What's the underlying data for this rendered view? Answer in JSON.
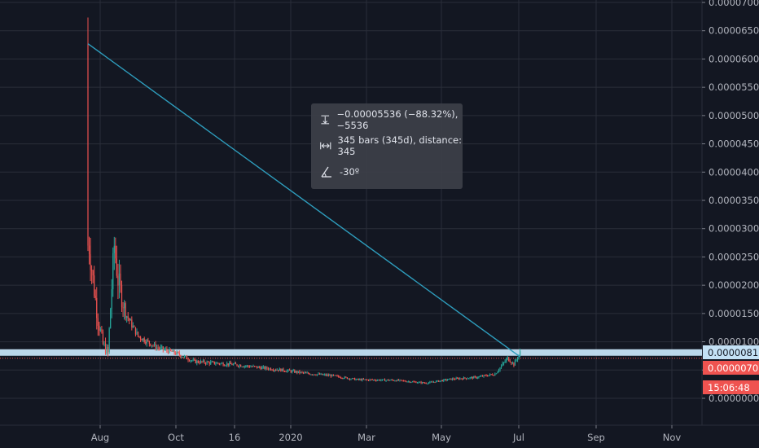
{
  "measure_tool": {
    "price_change": "−0.00005536 (−88.32%), −5536",
    "bars_distance": "345 bars (345d), distance: 345",
    "angle": "-30º",
    "icons": [
      "price-range-icon",
      "bars-range-icon",
      "angle-icon"
    ]
  },
  "price_labels": {
    "current_price": "0.00000810",
    "reference_price": "0.00000707",
    "countdown": "15:06:48"
  },
  "colors": {
    "background": "#131722",
    "up_candle": "#26a69a",
    "down_candle": "#ef5350",
    "trend_line": "#2e9dbd",
    "highlight_band": "#c4e1f5",
    "reference_line": "#ef5350"
  },
  "chart_data": {
    "type": "candlestick",
    "y_axis": {
      "ticks": [
        "0.00007000",
        "0.00006500",
        "0.00006000",
        "0.00005500",
        "0.00005000",
        "0.00004500",
        "0.00004000",
        "0.00003500",
        "0.00003000",
        "0.00002500",
        "0.00002000",
        "0.00001500",
        "0.00001000",
        "0.00000500",
        "0.00000000"
      ],
      "range": [
        0,
        7e-05
      ]
    },
    "x_axis": {
      "ticks": [
        "Aug",
        "Oct",
        "16",
        "2020",
        "Mar",
        "May",
        "Jul",
        "Sep",
        "Nov"
      ],
      "range_days": [
        0,
        480
      ]
    },
    "trend_line": {
      "start": {
        "day": 0,
        "price": 6.27e-05
      },
      "end": {
        "day": 345,
        "price": 7.34e-06
      }
    },
    "price_markers": {
      "current": 8.1e-06,
      "reference": 7.07e-06
    },
    "series_outline": [
      {
        "day": 0,
        "price": 6.27e-05
      },
      {
        "day": 1,
        "price": 2.7e-05
      },
      {
        "day": 4,
        "price": 2.1e-05
      },
      {
        "day": 8,
        "price": 1.4e-05
      },
      {
        "day": 12,
        "price": 9.5e-06
      },
      {
        "day": 16,
        "price": 8e-06
      },
      {
        "day": 18,
        "price": 1.6e-05
      },
      {
        "day": 21,
        "price": 2.7e-05
      },
      {
        "day": 24,
        "price": 2.1e-05
      },
      {
        "day": 30,
        "price": 1.5e-05
      },
      {
        "day": 40,
        "price": 1.1e-05
      },
      {
        "day": 55,
        "price": 9e-06
      },
      {
        "day": 70,
        "price": 8e-06
      },
      {
        "day": 85,
        "price": 6.5e-06
      },
      {
        "day": 115,
        "price": 6e-06
      },
      {
        "day": 135,
        "price": 5.5e-06
      },
      {
        "day": 155,
        "price": 5e-06
      },
      {
        "day": 175,
        "price": 4.4e-06
      },
      {
        "day": 195,
        "price": 4e-06
      },
      {
        "day": 215,
        "price": 3.3e-06
      },
      {
        "day": 245,
        "price": 3.2e-06
      },
      {
        "day": 270,
        "price": 2.7e-06
      },
      {
        "day": 290,
        "price": 3.4e-06
      },
      {
        "day": 310,
        "price": 3.7e-06
      },
      {
        "day": 325,
        "price": 4.3e-06
      },
      {
        "day": 335,
        "price": 7.1e-06
      },
      {
        "day": 340,
        "price": 6e-06
      },
      {
        "day": 345,
        "price": 8.1e-06
      }
    ]
  }
}
